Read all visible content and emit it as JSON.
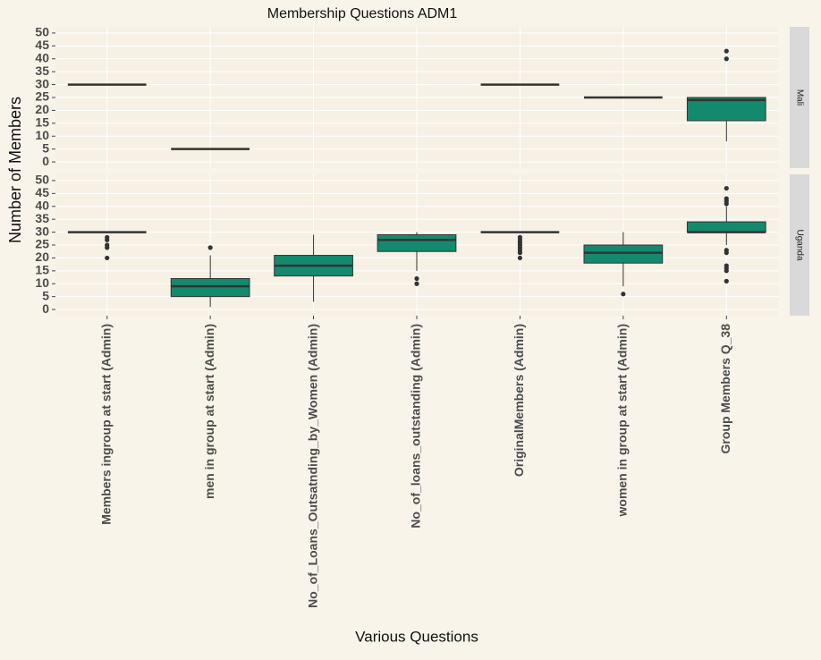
{
  "chart_data": {
    "type": "box",
    "title": "Membership Questions ADM1",
    "x_label": "Various Questions",
    "y_label": "Number of Members",
    "categories": [
      "Members ingroup at start (Admin)",
      "men in group at start (Admin)",
      "No_of_Loans_Outsatnding_by_Women (Admin)",
      "No_of_loans_outstanding (Admin)",
      "OriginalMembers (Admin)",
      "women in group at start (Admin)",
      "Group Members Q_38"
    ],
    "ylim": [
      -2.4,
      52.4
    ],
    "yticks": [
      0,
      5,
      10,
      15,
      20,
      25,
      30,
      35,
      40,
      45,
      50
    ],
    "grid": true,
    "color": "#138a6e",
    "facets": [
      {
        "name": "Mali",
        "min": [
          30,
          5,
          null,
          null,
          30,
          25,
          8
        ],
        "q1": [
          30,
          5,
          null,
          null,
          30,
          25,
          16
        ],
        "median": [
          30,
          5,
          null,
          null,
          30,
          25,
          24
        ],
        "q3": [
          30,
          5,
          null,
          null,
          30,
          25,
          25
        ],
        "max": [
          30,
          5,
          null,
          null,
          30,
          25,
          25
        ],
        "outliers": [
          [],
          [],
          [],
          [],
          [],
          [],
          [
            40,
            43
          ]
        ]
      },
      {
        "name": "Uganda",
        "min": [
          30,
          1,
          3,
          15,
          30,
          9,
          25
        ],
        "q1": [
          30,
          5,
          13,
          22.5,
          30,
          18,
          30
        ],
        "median": [
          30,
          9,
          17,
          27,
          30,
          22,
          30
        ],
        "q3": [
          30,
          12,
          21,
          29,
          30,
          25,
          34
        ],
        "max": [
          30,
          21,
          29,
          30,
          30,
          30,
          40
        ],
        "outliers": [
          [
            28,
            27,
            25,
            24,
            20
          ],
          [
            24
          ],
          [],
          [
            12,
            10
          ],
          [
            28,
            27,
            26,
            25,
            24,
            23,
            22,
            20
          ],
          [
            6
          ],
          [
            47,
            43,
            42,
            41,
            23,
            22,
            17,
            16,
            15,
            11
          ]
        ]
      }
    ]
  }
}
